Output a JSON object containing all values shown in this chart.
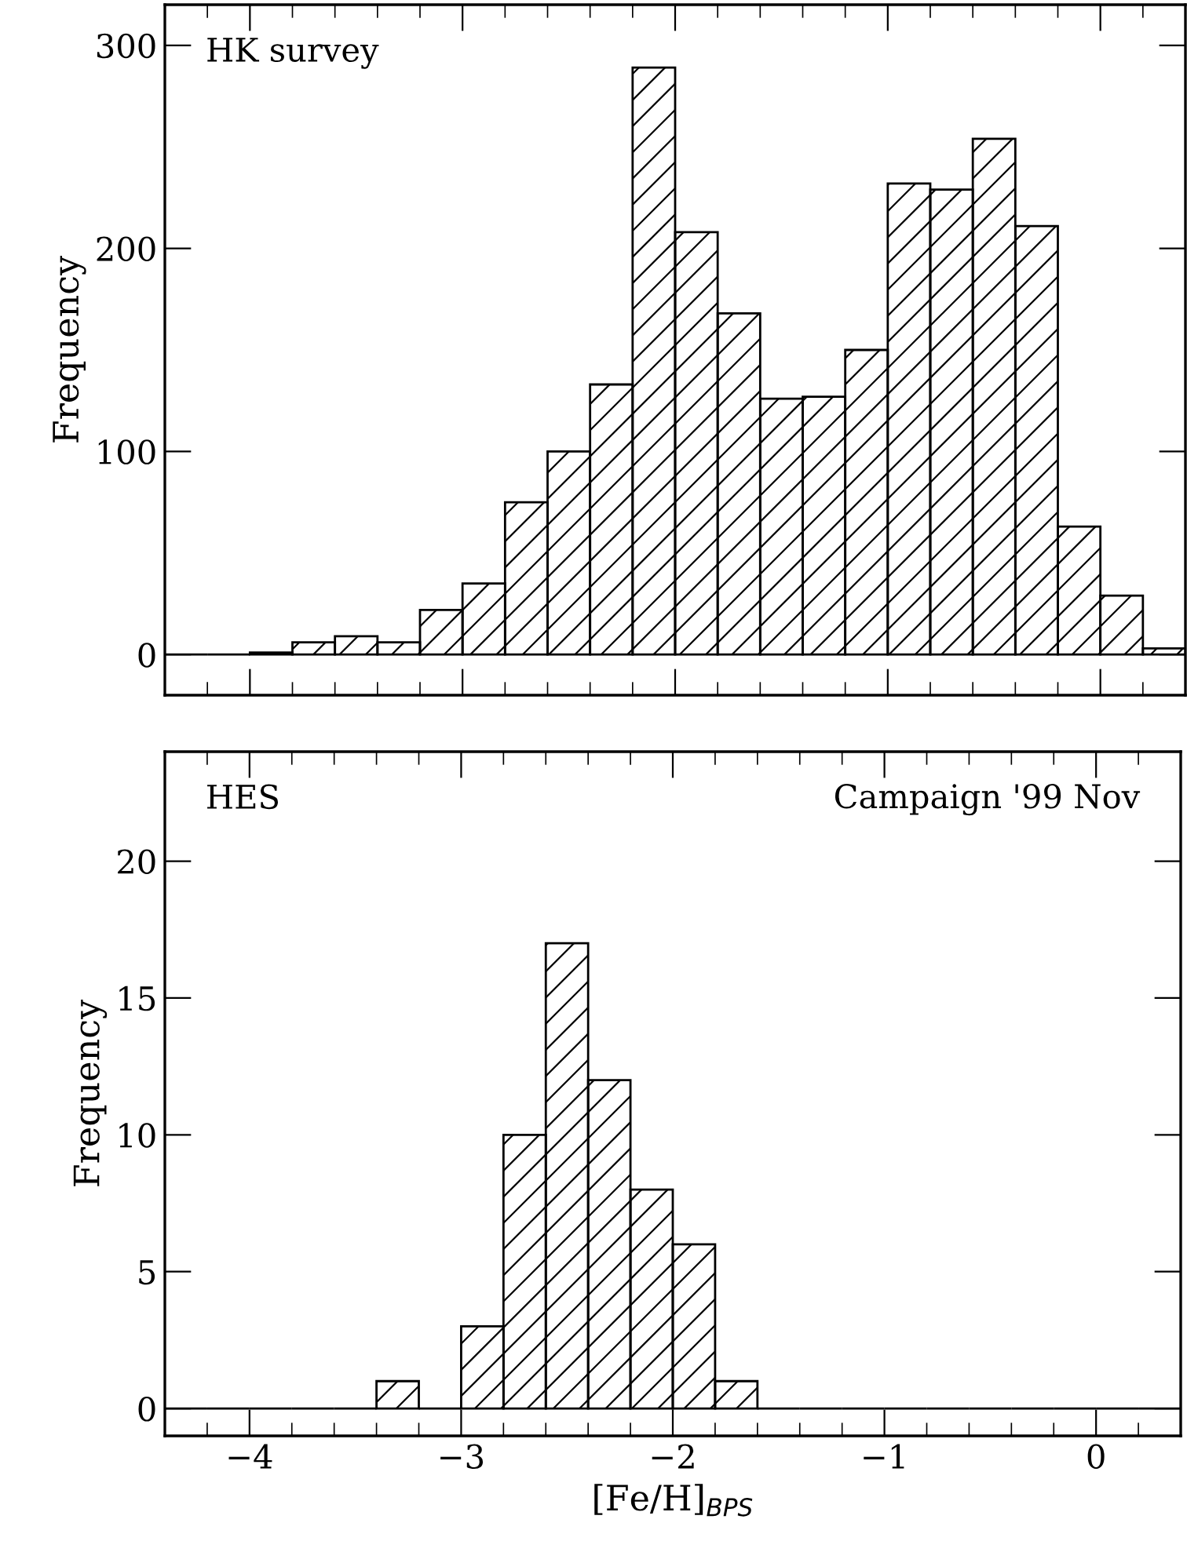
{
  "chart_data": [
    {
      "type": "histogram",
      "ylabel": "Frequency",
      "annotations": [
        "HK survey"
      ],
      "bins": [
        -4.4,
        -4.2,
        -4.0,
        -3.8,
        -3.6,
        -3.4,
        -3.2,
        -3.0,
        -2.8,
        -2.6,
        -2.4,
        -2.2,
        -2.0,
        -1.8,
        -1.6,
        -1.4,
        -1.2,
        -1.0,
        -0.8,
        -0.6,
        -0.4,
        -0.2,
        0.0,
        0.2,
        0.4
      ],
      "values": [
        0,
        0,
        1,
        6,
        9,
        6,
        22,
        35,
        75,
        100,
        133,
        289,
        208,
        168,
        126,
        127,
        150,
        232,
        229,
        254,
        211,
        63,
        29,
        3
      ],
      "color": "#000000",
      "xlim": [
        -4.4,
        0.4
      ],
      "ylim": [
        -20,
        320
      ],
      "xticks": [
        -4,
        -3,
        -2,
        -1,
        0
      ],
      "yticks": [
        0,
        100,
        200,
        300
      ],
      "tick_labels": "y"
    },
    {
      "type": "histogram",
      "xlabel": "[Fe/H]$_{BPS}$",
      "ylabel": "Frequency",
      "annotations": [
        "HES",
        "Campaign '99 Nov"
      ],
      "bins": [
        -4.4,
        -4.2,
        -4.0,
        -3.8,
        -3.6,
        -3.4,
        -3.2,
        -3.0,
        -2.8,
        -2.6,
        -2.4,
        -2.2,
        -2.0,
        -1.8,
        -1.6,
        -1.4,
        -1.2,
        -1.0,
        -0.8,
        -0.6,
        -0.4,
        -0.2,
        0.0,
        0.2,
        0.4
      ],
      "values": [
        0,
        0,
        0,
        0,
        0,
        1,
        0,
        3,
        10,
        17,
        12,
        8,
        6,
        1,
        0,
        0,
        0,
        0,
        0,
        0,
        0,
        0,
        0,
        0
      ],
      "color": "#000000",
      "xlim": [
        -4.4,
        0.4
      ],
      "ylim": [
        -1,
        24
      ],
      "xticks": [
        -4,
        -3,
        -2,
        -1,
        0
      ],
      "yticks": [
        0,
        5,
        10,
        15,
        20
      ]
    }
  ]
}
